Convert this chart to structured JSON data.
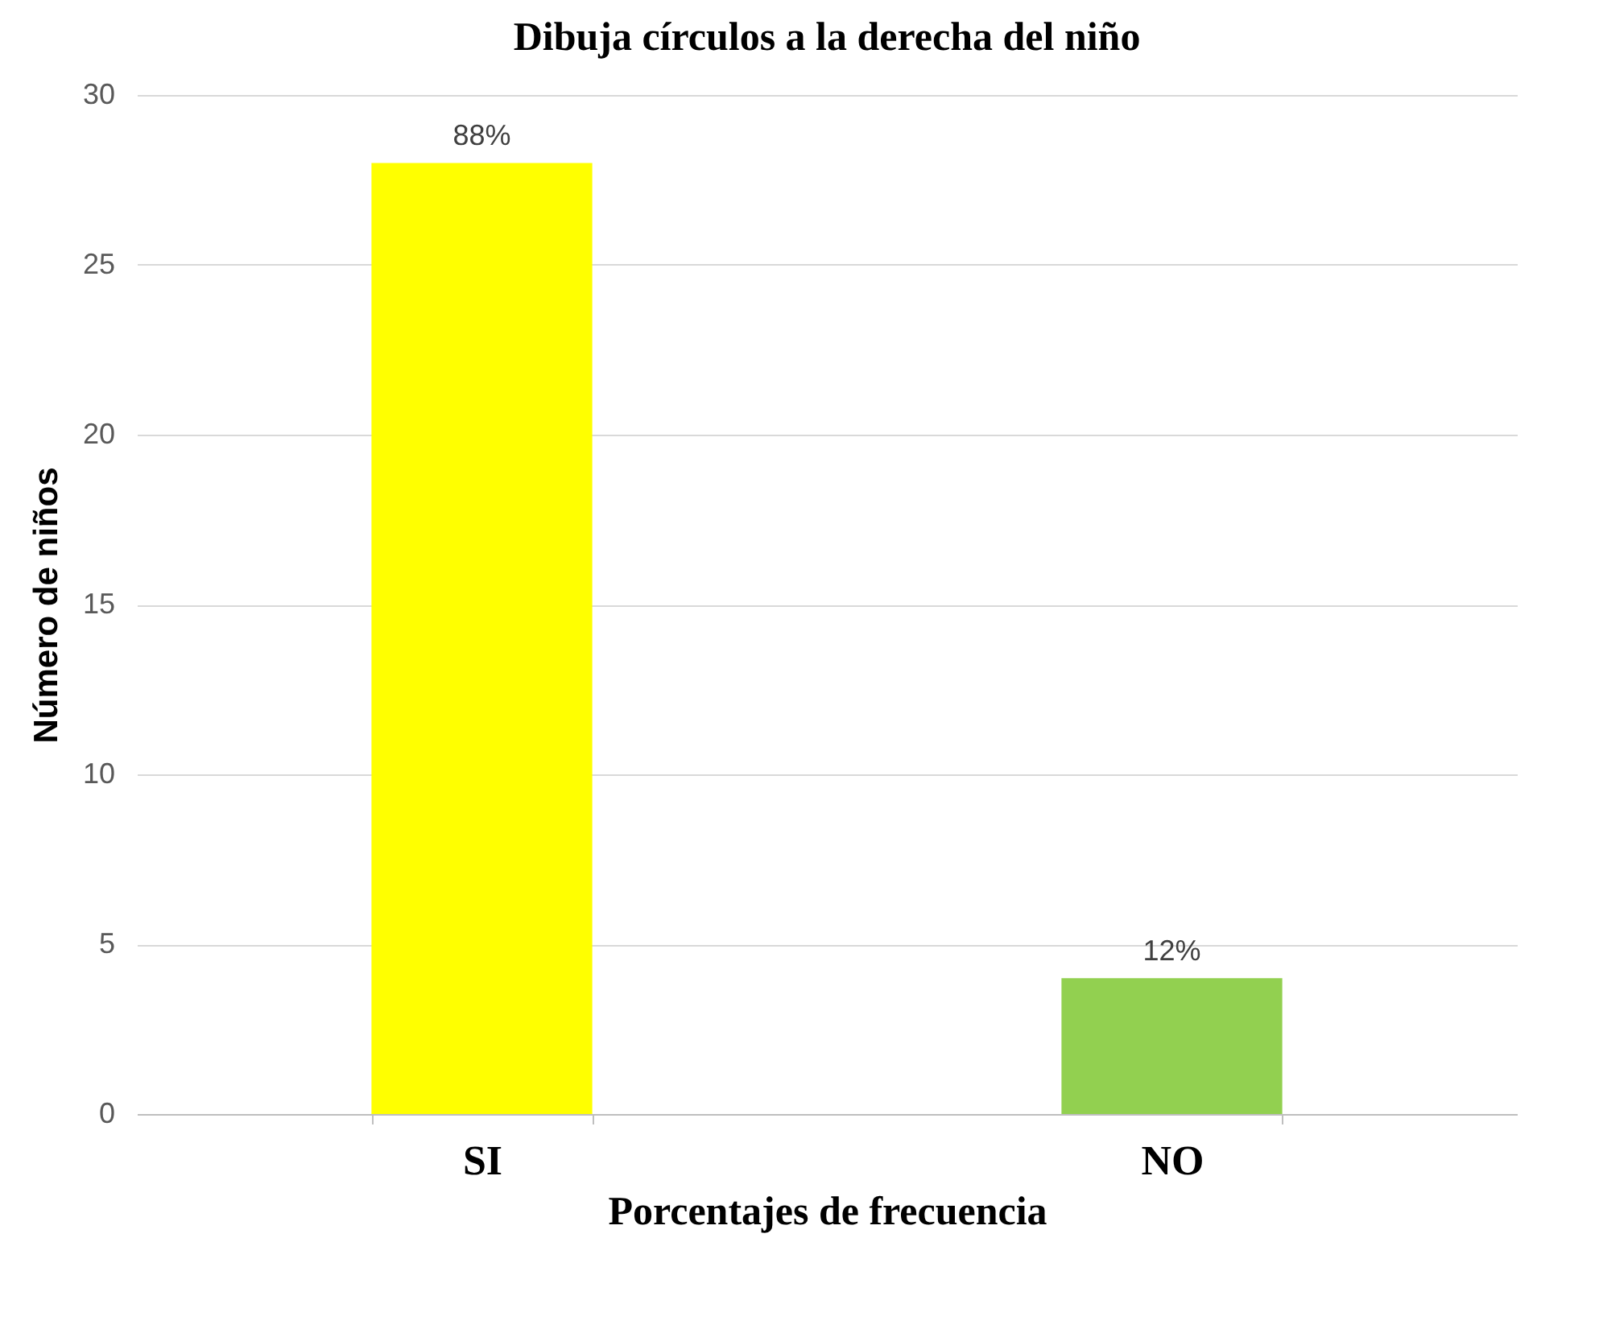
{
  "chart_data": {
    "type": "bar",
    "title": "Dibuja círculos a la derecha del niño",
    "xlabel": "Porcentajes de frecuencia",
    "ylabel": "Número de niños",
    "categories": [
      "SI",
      "NO"
    ],
    "values": [
      28,
      4
    ],
    "colors": [
      "#ffff00",
      "#92d050"
    ],
    "annotations": [
      {
        "text": "88%",
        "x": "SI",
        "y": 28
      },
      {
        "text": "12%",
        "x": "NO",
        "y": 4
      }
    ],
    "ylim": [
      0,
      30
    ],
    "yticks": [
      0,
      5,
      10,
      15,
      20,
      25,
      30
    ],
    "grid": "y",
    "legend": false
  }
}
